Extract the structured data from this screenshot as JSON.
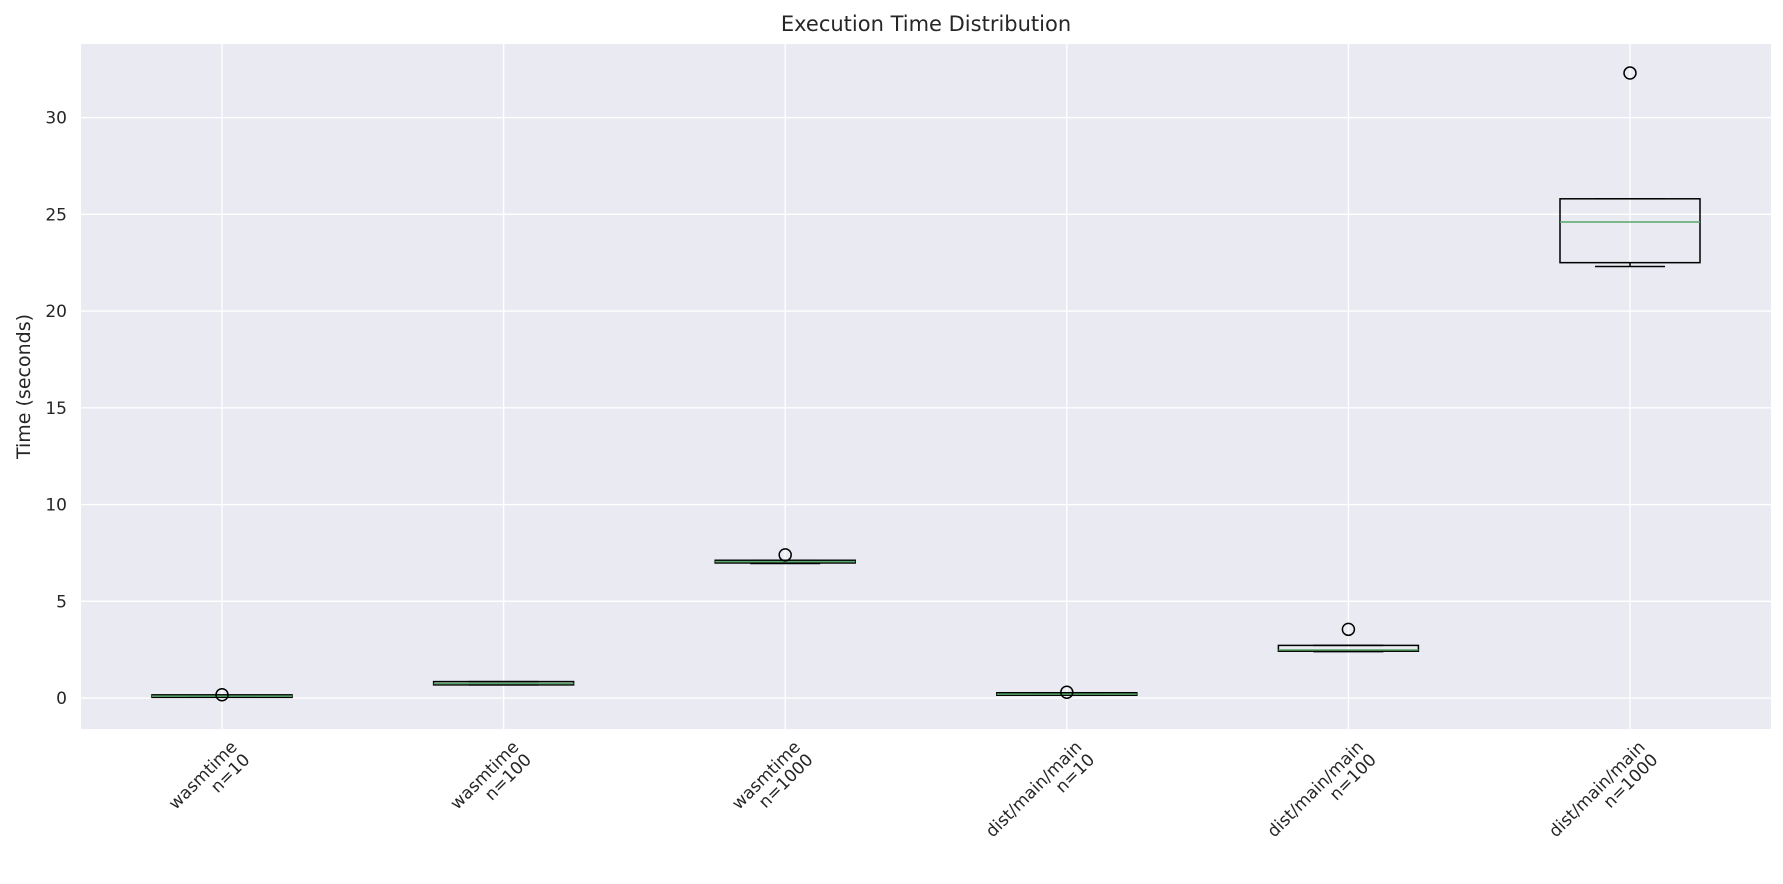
{
  "chart_data": {
    "type": "boxplot",
    "title": "Execution Time Distribution",
    "xlabel": "",
    "ylabel": "Time (seconds)",
    "ylim": [
      -1.6,
      33.8
    ],
    "yticks": [
      0,
      5,
      10,
      15,
      20,
      25,
      30
    ],
    "grid": true,
    "legend": "none",
    "colors": {
      "background": "#EAEAF2",
      "grid": "#FFFFFF",
      "box": "#000000",
      "median": "#55A868"
    },
    "categories": [
      [
        "wasmtime",
        "n=10"
      ],
      [
        "wasmtime",
        "n=100"
      ],
      [
        "wasmtime",
        "n=1000"
      ],
      [
        "dist/main/main",
        "n=10"
      ],
      [
        "dist/main/main",
        "n=100"
      ],
      [
        "dist/main/main",
        "n=1000"
      ]
    ],
    "boxes": [
      {
        "whisker_low": 0.08,
        "q1": 0.08,
        "median": 0.1,
        "q3": 0.12,
        "whisker_high": 0.12,
        "outliers": [
          0.17
        ]
      },
      {
        "whisker_low": 0.68,
        "q1": 0.68,
        "median": 0.75,
        "q3": 0.85,
        "whisker_high": 0.85,
        "outliers": []
      },
      {
        "whisker_low": 6.95,
        "q1": 6.98,
        "median": 7.05,
        "q3": 7.12,
        "whisker_high": 7.12,
        "outliers": [
          7.4
        ]
      },
      {
        "whisker_low": 0.18,
        "q1": 0.18,
        "median": 0.2,
        "q3": 0.24,
        "whisker_high": 0.24,
        "outliers": [
          0.3
        ]
      },
      {
        "whisker_low": 2.4,
        "q1": 2.42,
        "median": 2.48,
        "q3": 2.72,
        "whisker_high": 2.72,
        "outliers": [
          3.55
        ]
      },
      {
        "whisker_low": 22.3,
        "q1": 22.5,
        "median": 24.6,
        "q3": 25.8,
        "whisker_high": 25.8,
        "outliers": [
          32.3
        ]
      }
    ]
  }
}
